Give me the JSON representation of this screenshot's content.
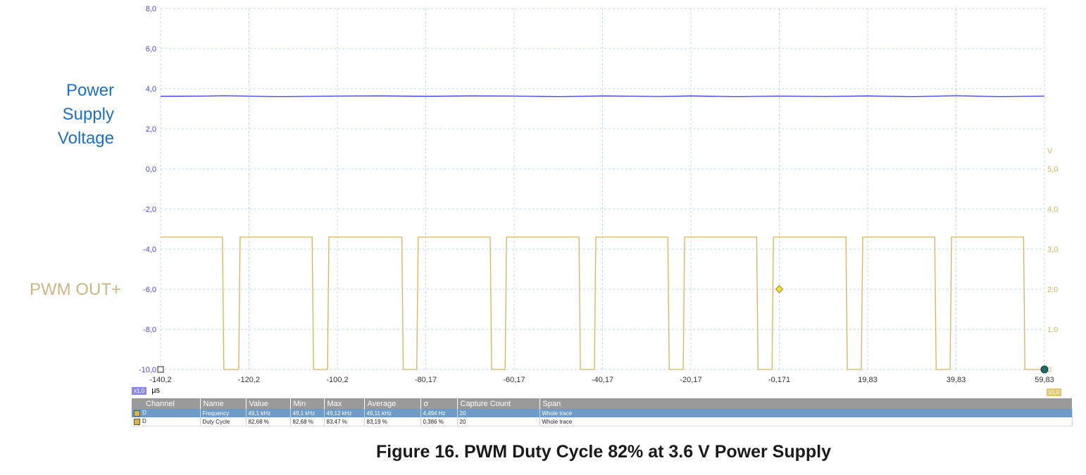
{
  "labels": {
    "power_supply": [
      "Power",
      "Supply",
      "Voltage"
    ],
    "pwm": "PWM OUT+"
  },
  "caption": "Figure 16. PWM Duty Cycle 82% at 3.6 V Power Supply",
  "x_axis": {
    "unit": "µs",
    "scale_badge": "x1,0"
  },
  "right_axis": {
    "unit": "V",
    "scale_badge": "x1,0"
  },
  "colors": {
    "power_trace": "#3a3ad6",
    "pwm_trace": "#d4b35e",
    "grid": "#bcd9ef",
    "table_header": "#9a9a9a",
    "selected_row": "#6e9cc7",
    "power_label": "#1f6fbf",
    "pwm_label": "#c9b886"
  },
  "measurements": {
    "columns": [
      "Channel",
      "Name",
      "Value",
      "Min",
      "Max",
      "Average",
      "σ",
      "Capture Count",
      "Span"
    ],
    "rows": [
      [
        "D",
        "Frequency",
        "49,1 kHz",
        "49,1 kHz",
        "49,12 kHz",
        "49,11 kHz",
        "4,494 Hz",
        "20",
        "Whole trace"
      ],
      [
        "D",
        "Duty Cycle",
        "82,68 %",
        "82,68 %",
        "83,47 %",
        "83,19 %",
        "0,386 %",
        "20",
        "Whole trace"
      ]
    ]
  },
  "chart_data": {
    "type": "line",
    "x_ticks": [
      "-140,2",
      "-120,2",
      "-100,2",
      "-80,17",
      "-60,17",
      "-40,17",
      "-20,17",
      "-0,171",
      "19,83",
      "39,83",
      "59,83"
    ],
    "y_left_ticks": [
      "8,0",
      "6,0",
      "4,0",
      "2,0",
      "0,0",
      "-2,0",
      "-4,0",
      "-6,0",
      "-8,0",
      "-10,0"
    ],
    "y_right_ticks": [
      "5,0",
      "4,0",
      "3,0",
      "2,0",
      "1,0",
      "0"
    ],
    "xlim": [
      -140.2,
      59.83
    ],
    "ylim_left": [
      -10,
      8
    ],
    "ylim_right": [
      0,
      5
    ],
    "grid": true,
    "series": [
      {
        "name": "Power Supply Voltage",
        "axis": "left",
        "x": [
          -140.2,
          -129.5,
          -126.0,
          -113.0,
          -100.2,
          -90.0,
          -80.17,
          -70.0,
          -60.17,
          -50.0,
          -40.17,
          -27.0,
          -20.17,
          -10.0,
          -0.171,
          10.0,
          19.83,
          30.0,
          39.83,
          50.0,
          59.83
        ],
        "y": [
          3.62,
          3.63,
          3.65,
          3.6,
          3.63,
          3.64,
          3.62,
          3.64,
          3.63,
          3.6,
          3.64,
          3.61,
          3.64,
          3.6,
          3.63,
          3.61,
          3.64,
          3.6,
          3.65,
          3.6,
          3.63
        ]
      },
      {
        "name": "PWM OUT+",
        "axis": "right",
        "high": 3.3,
        "low": 0.0,
        "high_intervals": [
          [
            -140.2,
            -126.2
          ],
          [
            -122.2,
            -105.9
          ],
          [
            -102.1,
            -85.6
          ],
          [
            -81.9,
            -65.6
          ],
          [
            -61.9,
            -45.5
          ],
          [
            -41.7,
            -25.4
          ],
          [
            -21.6,
            -5.3
          ],
          [
            -1.5,
            14.9
          ],
          [
            18.7,
            35.0
          ],
          [
            38.8,
            55.1
          ]
        ]
      }
    ],
    "cursors": [
      {
        "x": -0.171,
        "y_right": 2.0
      }
    ]
  }
}
